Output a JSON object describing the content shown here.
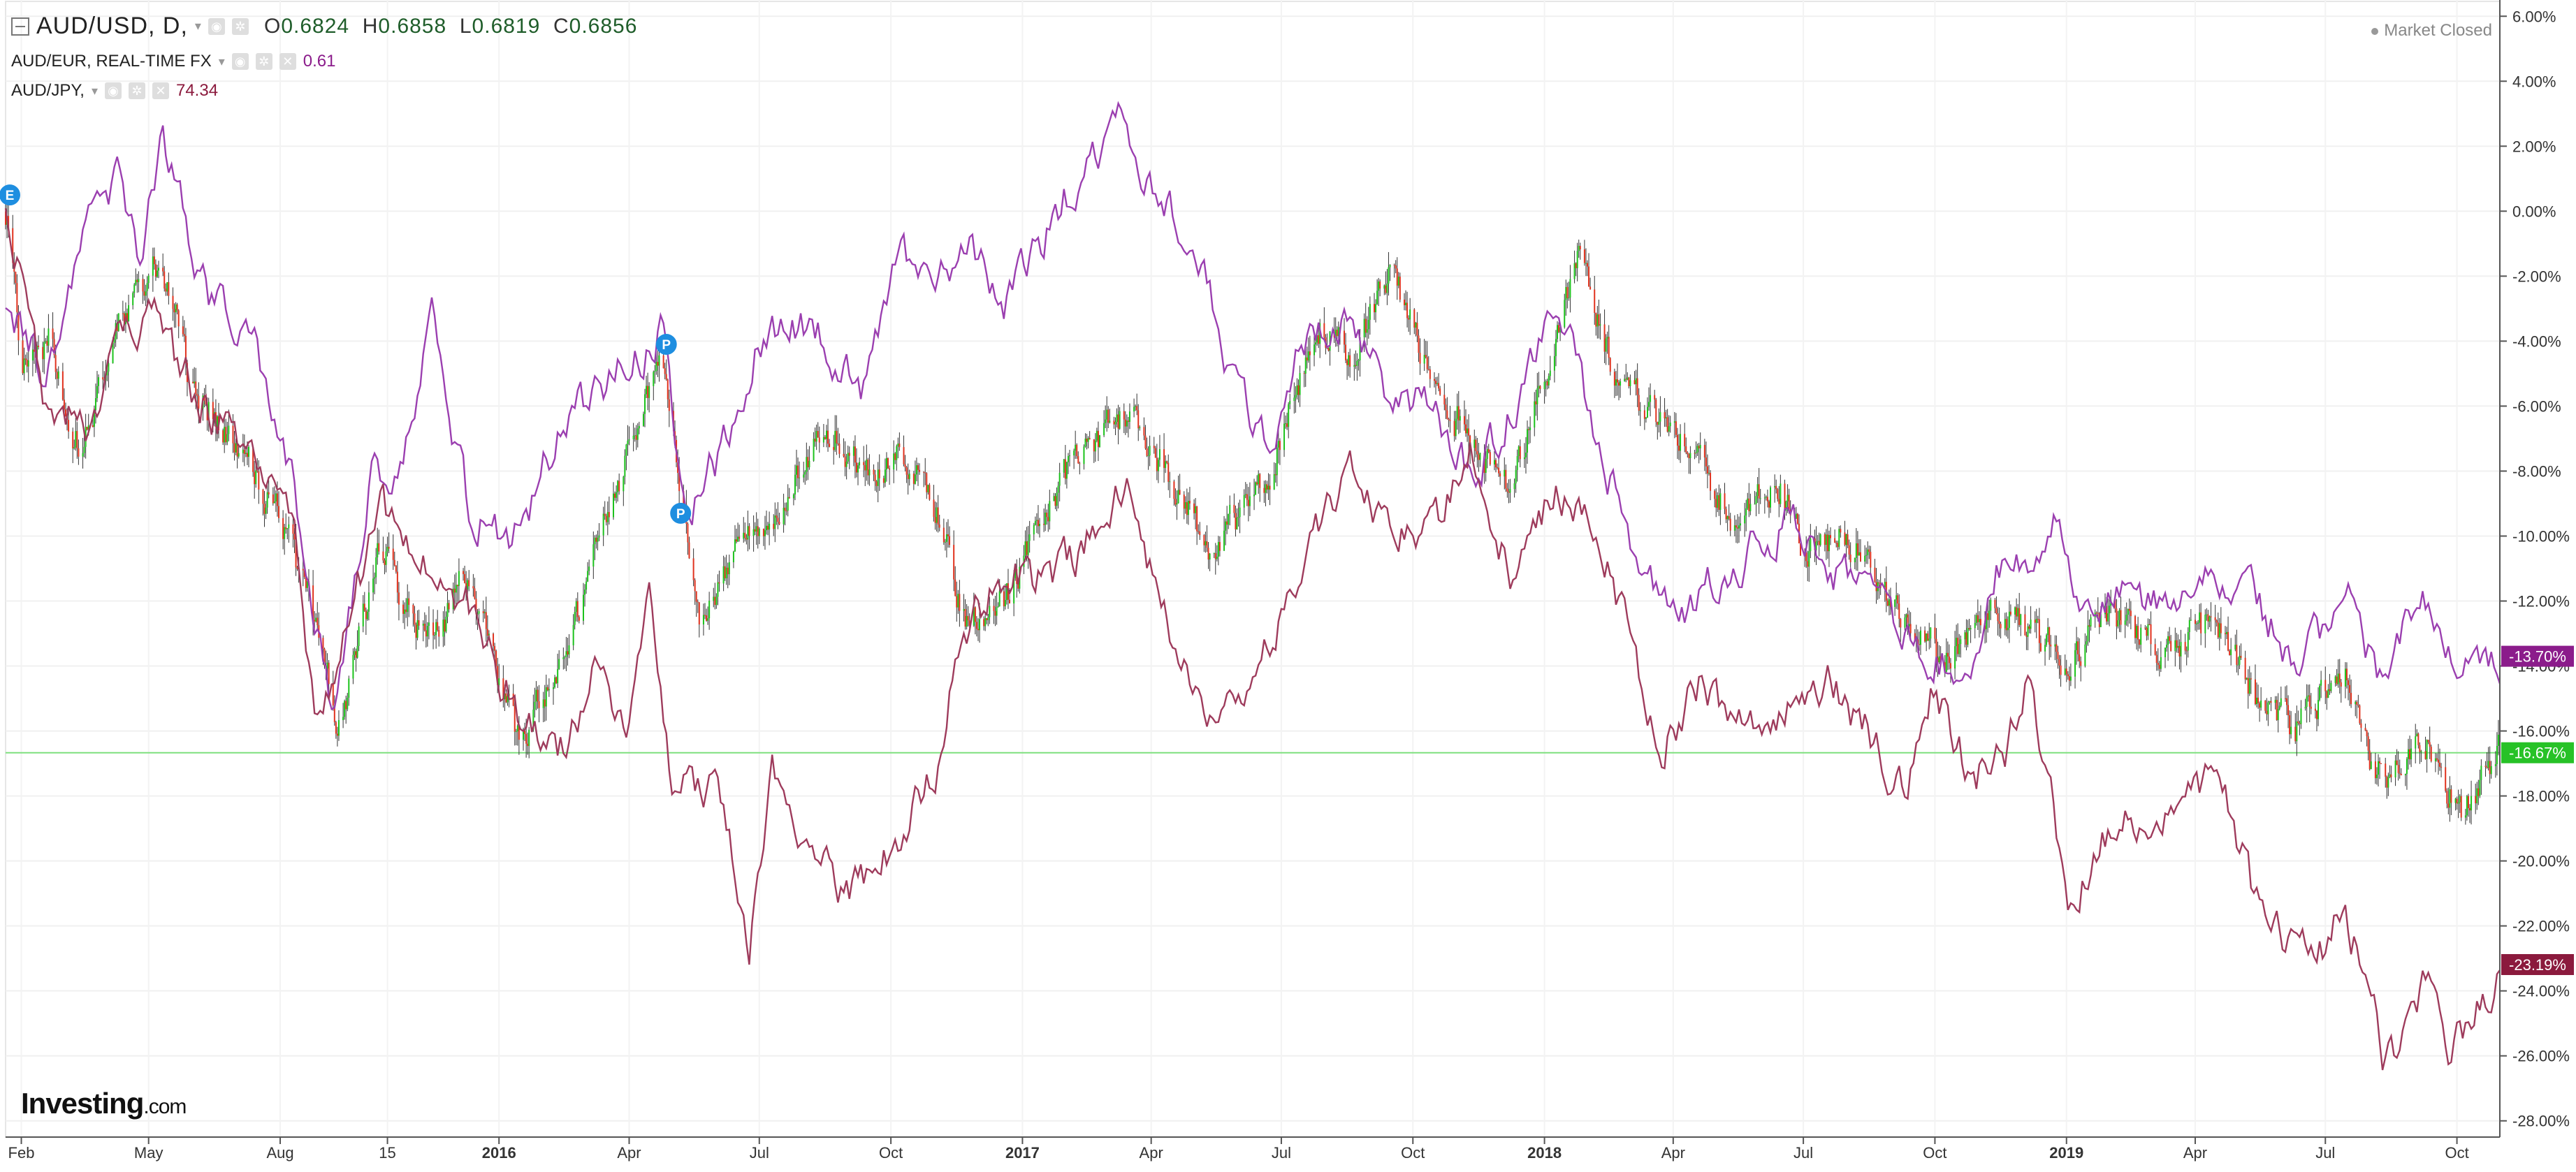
{
  "header": {
    "main_symbol": "AUD/USD, D,",
    "ohlc": {
      "o_label": "O",
      "o": "0.6824",
      "h_label": "H",
      "h": "0.6858",
      "l_label": "L",
      "l": "0.6819",
      "c_label": "C",
      "c": "0.6856"
    },
    "series2_symbol": "AUD/EUR, REAL-TIME FX",
    "series2_value": "0.61",
    "series3_symbol": "AUD/JPY,",
    "series3_value": "74.34",
    "market_status": "Market Closed"
  },
  "logo": {
    "main": "Investing",
    "suffix": ".com"
  },
  "colors": {
    "up": "#1cc21c",
    "down": "#e0321e",
    "eur_line": "#9b3fb0",
    "jpy_line": "#9e3b5c",
    "ref_line": "#7ee07e",
    "badge_usd": "#27c227",
    "badge_eur": "#8b1c8b",
    "badge_jpy": "#8b1a3d",
    "marker": "#1e8ee0"
  },
  "chart_data": {
    "type": "line",
    "x_axis": {
      "min": "2015-01-21",
      "max": "2019-10-31",
      "ticks": [
        {
          "date": "2015-02-01",
          "label": "Feb"
        },
        {
          "date": "2015-05-01",
          "label": "May"
        },
        {
          "date": "2015-08-01",
          "label": "Aug"
        },
        {
          "date": "2015-10-15",
          "label": "15"
        },
        {
          "date": "2016-01-01",
          "label": "2016"
        },
        {
          "date": "2016-04-01",
          "label": "Apr"
        },
        {
          "date": "2016-07-01",
          "label": "Jul"
        },
        {
          "date": "2016-10-01",
          "label": "Oct"
        },
        {
          "date": "2017-01-01",
          "label": "2017"
        },
        {
          "date": "2017-04-01",
          "label": "Apr"
        },
        {
          "date": "2017-07-01",
          "label": "Jul"
        },
        {
          "date": "2017-10-01",
          "label": "Oct"
        },
        {
          "date": "2018-01-01",
          "label": "2018"
        },
        {
          "date": "2018-04-01",
          "label": "Apr"
        },
        {
          "date": "2018-07-01",
          "label": "Jul"
        },
        {
          "date": "2018-10-01",
          "label": "Oct"
        },
        {
          "date": "2019-01-01",
          "label": "2019"
        },
        {
          "date": "2019-04-01",
          "label": "Apr"
        },
        {
          "date": "2019-07-01",
          "label": "Jul"
        },
        {
          "date": "2019-10-01",
          "label": "Oct"
        }
      ],
      "bold_labels": [
        "2016",
        "2017",
        "2018",
        "2019"
      ]
    },
    "y_axis": {
      "min": -28.5,
      "max": 6.5,
      "unit": "%",
      "ticks": [
        "6.00%",
        "4.00%",
        "2.00%",
        "0.00%",
        "-2.00%",
        "-4.00%",
        "-6.00%",
        "-8.00%",
        "-10.00%",
        "-12.00%",
        "-14.00%",
        "-16.00%",
        "-18.00%",
        "-20.00%",
        "-22.00%",
        "-24.00%",
        "-26.00%",
        "-28.00%"
      ],
      "tick_values": [
        6,
        4,
        2,
        0,
        -2,
        -4,
        -6,
        -8,
        -10,
        -12,
        -14,
        -16,
        -18,
        -20,
        -22,
        -24,
        -26,
        -28
      ]
    },
    "grid": true,
    "series": [
      {
        "name": "AUD/USD",
        "style": "candlestick",
        "points": [
          [
            "2015-01-22",
            0.0
          ],
          [
            "2015-02-01",
            -5.0
          ],
          [
            "2015-02-20",
            -4.0
          ],
          [
            "2015-03-15",
            -7.5
          ],
          [
            "2015-04-10",
            -3.5
          ],
          [
            "2015-05-10",
            -1.5
          ],
          [
            "2015-06-01",
            -5.5
          ],
          [
            "2015-07-01",
            -7.0
          ],
          [
            "2015-08-01",
            -9.5
          ],
          [
            "2015-09-01",
            -13.5
          ],
          [
            "2015-09-10",
            -16.0
          ],
          [
            "2015-10-10",
            -10.5
          ],
          [
            "2015-11-15",
            -13.5
          ],
          [
            "2015-12-10",
            -11.0
          ],
          [
            "2016-01-15",
            -16.5
          ],
          [
            "2016-02-20",
            -13.0
          ],
          [
            "2016-04-10",
            -6.0
          ],
          [
            "2016-04-25",
            -4.8
          ],
          [
            "2016-05-20",
            -12.5
          ],
          [
            "2016-06-15",
            -10.5
          ],
          [
            "2016-07-15",
            -9.0
          ],
          [
            "2016-08-15",
            -6.5
          ],
          [
            "2016-09-15",
            -8.0
          ],
          [
            "2016-10-15",
            -7.5
          ],
          [
            "2016-11-05",
            -9.5
          ],
          [
            "2016-11-20",
            -12.5
          ],
          [
            "2016-12-20",
            -12.0
          ],
          [
            "2017-01-25",
            -8.5
          ],
          [
            "2017-03-15",
            -6.0
          ],
          [
            "2017-04-20",
            -8.5
          ],
          [
            "2017-05-10",
            -10.5
          ],
          [
            "2017-06-20",
            -8.5
          ],
          [
            "2017-07-25",
            -3.5
          ],
          [
            "2017-08-20",
            -4.5
          ],
          [
            "2017-09-15",
            -1.8
          ],
          [
            "2017-10-20",
            -5.5
          ],
          [
            "2017-11-15",
            -7.5
          ],
          [
            "2017-12-10",
            -8.5
          ],
          [
            "2018-01-15",
            -3.0
          ],
          [
            "2018-01-25",
            -1.5
          ],
          [
            "2018-02-20",
            -5.0
          ],
          [
            "2018-03-20",
            -6.5
          ],
          [
            "2018-04-20",
            -7.5
          ],
          [
            "2018-05-10",
            -9.5
          ],
          [
            "2018-06-15",
            -8.5
          ],
          [
            "2018-07-01",
            -10.5
          ],
          [
            "2018-08-01",
            -10.0
          ],
          [
            "2018-08-30",
            -12.0
          ],
          [
            "2018-10-10",
            -13.8
          ],
          [
            "2018-11-10",
            -12.0
          ],
          [
            "2018-12-20",
            -13.5
          ],
          [
            "2019-01-03",
            -14.0
          ],
          [
            "2019-01-25",
            -12.5
          ],
          [
            "2019-02-20",
            -13.0
          ],
          [
            "2019-03-15",
            -13.5
          ],
          [
            "2019-04-15",
            -12.5
          ],
          [
            "2019-05-15",
            -15.0
          ],
          [
            "2019-06-10",
            -16.0
          ],
          [
            "2019-07-15",
            -14.0
          ],
          [
            "2019-08-05",
            -17.5
          ],
          [
            "2019-09-10",
            -16.5
          ],
          [
            "2019-10-05",
            -18.5
          ],
          [
            "2019-10-31",
            -16.67
          ]
        ],
        "last_label": "-16.67%"
      },
      {
        "name": "AUD/EUR",
        "style": "line",
        "points": [
          [
            "2015-01-22",
            -2.5
          ],
          [
            "2015-02-15",
            -5.0
          ],
          [
            "2015-03-20",
            -0.5
          ],
          [
            "2015-04-10",
            1.0
          ],
          [
            "2015-04-25",
            -1.5
          ],
          [
            "2015-05-10",
            2.5
          ],
          [
            "2015-06-10",
            -2.5
          ],
          [
            "2015-07-15",
            -4.5
          ],
          [
            "2015-08-10",
            -8.5
          ],
          [
            "2015-09-05",
            -15.5
          ],
          [
            "2015-10-05",
            -8.0
          ],
          [
            "2015-10-20",
            -8.5
          ],
          [
            "2015-11-15",
            -3.5
          ],
          [
            "2015-12-10",
            -9.0
          ],
          [
            "2016-01-10",
            -10.5
          ],
          [
            "2016-02-10",
            -7.0
          ],
          [
            "2016-03-10",
            -5.5
          ],
          [
            "2016-04-10",
            -4.5
          ],
          [
            "2016-04-25",
            -3.2
          ],
          [
            "2016-05-10",
            -9.5
          ],
          [
            "2016-06-10",
            -7.0
          ],
          [
            "2016-07-01",
            -4.0
          ],
          [
            "2016-08-10",
            -3.5
          ],
          [
            "2016-09-10",
            -5.5
          ],
          [
            "2016-10-05",
            -1.2
          ],
          [
            "2016-11-01",
            -2.5
          ],
          [
            "2016-11-25",
            -1.0
          ],
          [
            "2016-12-20",
            -3.0
          ],
          [
            "2017-01-20",
            -0.5
          ],
          [
            "2017-02-15",
            1.5
          ],
          [
            "2017-03-10",
            2.5
          ],
          [
            "2017-04-01",
            0.5
          ],
          [
            "2017-05-01",
            -1.0
          ],
          [
            "2017-06-01",
            -6.0
          ],
          [
            "2017-06-25",
            -7.5
          ],
          [
            "2017-07-15",
            -4.0
          ],
          [
            "2017-08-15",
            -3.0
          ],
          [
            "2017-09-10",
            -5.5
          ],
          [
            "2017-10-10",
            -6.0
          ],
          [
            "2017-11-10",
            -8.0
          ],
          [
            "2017-12-05",
            -6.5
          ],
          [
            "2018-01-10",
            -3.0
          ],
          [
            "2018-02-01",
            -6.0
          ],
          [
            "2018-03-01",
            -10.0
          ],
          [
            "2018-04-01",
            -12.5
          ],
          [
            "2018-05-10",
            -11.0
          ],
          [
            "2018-06-20",
            -9.5
          ],
          [
            "2018-07-20",
            -11.0
          ],
          [
            "2018-08-20",
            -12.0
          ],
          [
            "2018-09-20",
            -13.5
          ],
          [
            "2018-10-25",
            -14.0
          ],
          [
            "2018-11-15",
            -11.0
          ],
          [
            "2018-12-05",
            -10.5
          ],
          [
            "2018-12-25",
            -9.0
          ],
          [
            "2019-01-10",
            -12.5
          ],
          [
            "2019-02-10",
            -11.5
          ],
          [
            "2019-03-10",
            -12.0
          ],
          [
            "2019-04-10",
            -10.5
          ],
          [
            "2019-05-10",
            -12.0
          ],
          [
            "2019-06-15",
            -14.0
          ],
          [
            "2019-07-15",
            -11.8
          ],
          [
            "2019-08-10",
            -14.5
          ],
          [
            "2019-08-25",
            -13.0
          ],
          [
            "2019-09-10",
            -12.2
          ],
          [
            "2019-09-25",
            -13.5
          ],
          [
            "2019-10-31",
            -13.7
          ]
        ],
        "last_label": "-13.70%"
      },
      {
        "name": "AUD/JPY",
        "style": "line",
        "points": [
          [
            "2015-01-22",
            0.5
          ],
          [
            "2015-02-15",
            -5.5
          ],
          [
            "2015-03-20",
            -6.5
          ],
          [
            "2015-04-15",
            -4.0
          ],
          [
            "2015-05-01",
            -3.0
          ],
          [
            "2015-06-01",
            -5.5
          ],
          [
            "2015-07-01",
            -7.0
          ],
          [
            "2015-08-10",
            -10.0
          ],
          [
            "2015-08-25",
            -16.0
          ],
          [
            "2015-09-15",
            -13.0
          ],
          [
            "2015-10-10",
            -9.0
          ],
          [
            "2015-11-10",
            -11.0
          ],
          [
            "2015-12-10",
            -12.0
          ],
          [
            "2016-01-15",
            -15.5
          ],
          [
            "2016-02-10",
            -17.0
          ],
          [
            "2016-03-10",
            -14.0
          ],
          [
            "2016-04-01",
            -16.0
          ],
          [
            "2016-04-15",
            -11.0
          ],
          [
            "2016-05-01",
            -17.5
          ],
          [
            "2016-06-01",
            -18.0
          ],
          [
            "2016-06-24",
            -22.5
          ],
          [
            "2016-07-10",
            -17.5
          ],
          [
            "2016-08-01",
            -19.0
          ],
          [
            "2016-08-25",
            -21.0
          ],
          [
            "2016-09-20",
            -20.5
          ],
          [
            "2016-10-15",
            -18.5
          ],
          [
            "2016-11-01",
            -17.0
          ],
          [
            "2016-11-20",
            -13.0
          ],
          [
            "2016-12-20",
            -11.0
          ],
          [
            "2017-01-20",
            -11.5
          ],
          [
            "2017-02-20",
            -10.0
          ],
          [
            "2017-03-15",
            -8.5
          ],
          [
            "2017-04-15",
            -13.0
          ],
          [
            "2017-05-15",
            -15.5
          ],
          [
            "2017-06-20",
            -13.5
          ],
          [
            "2017-07-20",
            -10.5
          ],
          [
            "2017-08-20",
            -8.0
          ],
          [
            "2017-09-20",
            -10.0
          ],
          [
            "2017-10-20",
            -9.5
          ],
          [
            "2017-11-10",
            -7.0
          ],
          [
            "2017-12-10",
            -11.5
          ],
          [
            "2018-01-10",
            -8.5
          ],
          [
            "2018-02-10",
            -10.5
          ],
          [
            "2018-03-01",
            -13.0
          ],
          [
            "2018-03-25",
            -16.5
          ],
          [
            "2018-04-20",
            -14.5
          ],
          [
            "2018-05-20",
            -16.0
          ],
          [
            "2018-06-20",
            -15.0
          ],
          [
            "2018-07-20",
            -14.5
          ],
          [
            "2018-08-15",
            -16.0
          ],
          [
            "2018-09-10",
            -18.0
          ],
          [
            "2018-10-01",
            -14.5
          ],
          [
            "2018-10-25",
            -17.5
          ],
          [
            "2018-11-20",
            -16.5
          ],
          [
            "2018-12-05",
            -14.5
          ],
          [
            "2018-12-25",
            -19.0
          ],
          [
            "2019-01-03",
            -22.0
          ],
          [
            "2019-01-20",
            -19.5
          ],
          [
            "2019-02-20",
            -18.5
          ],
          [
            "2019-03-20",
            -19.0
          ],
          [
            "2019-04-15",
            -17.0
          ],
          [
            "2019-05-15",
            -21.5
          ],
          [
            "2019-06-10",
            -22.5
          ],
          [
            "2019-06-25",
            -23.0
          ],
          [
            "2019-07-15",
            -21.5
          ],
          [
            "2019-08-01",
            -24.0
          ],
          [
            "2019-08-10",
            -26.0
          ],
          [
            "2019-08-25",
            -25.5
          ],
          [
            "2019-09-10",
            -23.5
          ],
          [
            "2019-09-25",
            -25.5
          ],
          [
            "2019-10-10",
            -25.0
          ],
          [
            "2019-10-31",
            -23.19
          ]
        ],
        "last_label": "-23.19%"
      }
    ],
    "reference_line": {
      "value": -16.67
    },
    "markers": [
      {
        "date": "2015-01-21",
        "value": 0.5,
        "label": "E"
      },
      {
        "date": "2016-04-27",
        "value": -4.1,
        "label": "P"
      },
      {
        "date": "2016-05-07",
        "value": -9.3,
        "label": "P"
      }
    ]
  }
}
